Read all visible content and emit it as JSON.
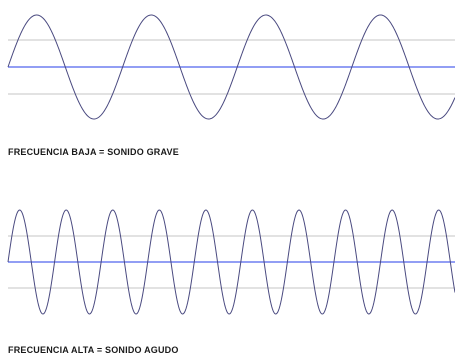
{
  "low_frequency": {
    "caption": "FRECUENCIA BAJA = SONIDO GRAVE",
    "cycles_visible": 3.9
  },
  "high_frequency": {
    "caption": "FRECUENCIA ALTA = SONIDO AGUDO",
    "cycles_visible": 9.6
  },
  "colors": {
    "wave": "#4a4a80",
    "axis": "#6f7ff0",
    "guide": "#d9d9d9",
    "caption": "#1a1a1a"
  }
}
